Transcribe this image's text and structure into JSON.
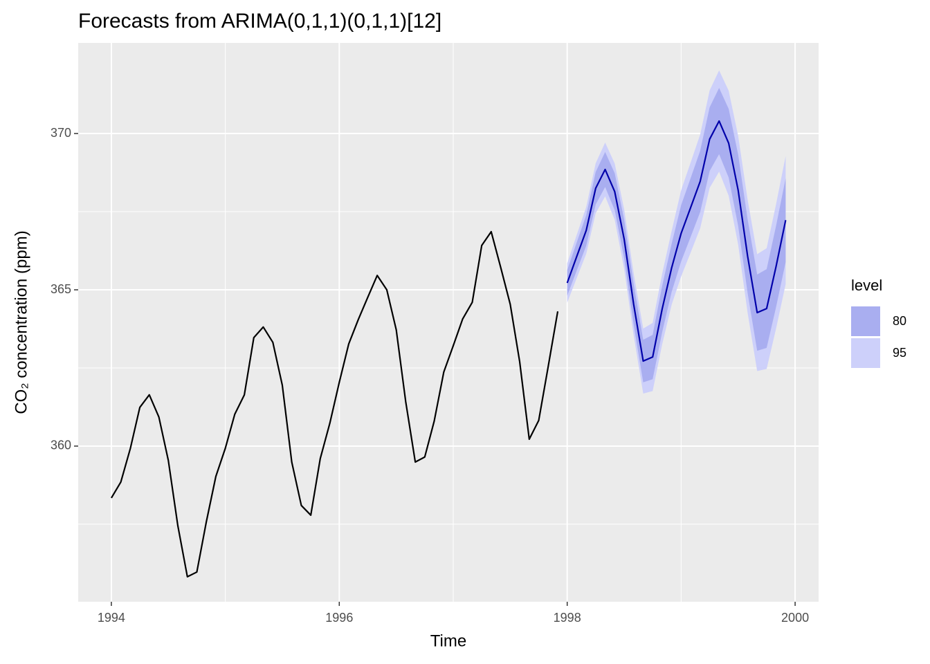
{
  "chart_data": {
    "type": "line",
    "title": "Forecasts from ARIMA(0,1,1)(0,1,1)[12]",
    "xlabel": "Time",
    "ylabel": "CO₂ concentration (ppm)",
    "xlim": [
      1993.709,
      2000.206
    ],
    "ylim": [
      355.02,
      372.9
    ],
    "xticks": [
      1994,
      1996,
      1998,
      2000
    ],
    "yticks": [
      360,
      365,
      370
    ],
    "xminor": [
      1995,
      1997,
      1999
    ],
    "yminor": [
      357.5,
      362.5,
      367.5
    ],
    "grid": true,
    "series": [
      {
        "color": "#000000",
        "x": [
          1994,
          1994.083,
          1994.167,
          1994.25,
          1994.333,
          1994.417,
          1994.5,
          1994.583,
          1994.667,
          1994.75,
          1994.833,
          1994.917,
          1995,
          1995.083,
          1995.167,
          1995.25,
          1995.333,
          1995.417,
          1995.5,
          1995.583,
          1995.667,
          1995.75,
          1995.833,
          1995.917,
          1996,
          1996.083,
          1996.167,
          1996.25,
          1996.333,
          1996.417,
          1996.5,
          1996.583,
          1996.667,
          1996.75,
          1996.833,
          1996.917,
          1997,
          1997.083,
          1997.167,
          1997.25,
          1997.333,
          1997.417,
          1997.5,
          1997.583,
          1997.667,
          1997.75,
          1997.833,
          1997.917
        ],
        "values": [
          358.34,
          358.85,
          359.93,
          361.24,
          361.64,
          360.93,
          359.54,
          357.46,
          355.82,
          355.97,
          357.57,
          359.03,
          359.93,
          361.02,
          361.64,
          363.47,
          363.81,
          363.32,
          361.95,
          359.49,
          358.1,
          357.79,
          359.6,
          360.73,
          362.04,
          363.27,
          364.05,
          364.76,
          365.46,
          365.0,
          363.72,
          361.42,
          359.49,
          359.65,
          360.8,
          362.37,
          363.21,
          364.07,
          364.6,
          366.42,
          366.86,
          365.71,
          364.54,
          362.7,
          360.22,
          360.82,
          362.54,
          364.31
        ]
      },
      {
        "color": "#0000aa",
        "x": [
          1998,
          1998.083,
          1998.167,
          1998.25,
          1998.333,
          1998.417,
          1998.5,
          1998.583,
          1998.667,
          1998.75,
          1998.833,
          1998.917,
          1999,
          1999.083,
          1999.167,
          1999.25,
          1999.333,
          1999.417,
          1999.5,
          1999.583,
          1999.667,
          1999.75,
          1999.833,
          1999.917
        ],
        "values": [
          365.22,
          366.06,
          366.9,
          368.25,
          368.85,
          368.14,
          366.62,
          364.54,
          362.72,
          362.85,
          364.38,
          365.71,
          366.81,
          367.63,
          368.47,
          369.82,
          370.4,
          369.69,
          368.19,
          366.08,
          364.27,
          364.4,
          365.75,
          367.23
        ]
      }
    ],
    "legend_title": "level",
    "intervals": [
      {
        "name": "80",
        "color": "#a9aef0",
        "lower": [
          364.81,
          365.61,
          366.41,
          367.73,
          368.29,
          367.55,
          366.0,
          363.89,
          362.04,
          362.14,
          363.64,
          364.94,
          365.91,
          366.69,
          367.49,
          368.8,
          369.34,
          368.59,
          367.05,
          364.9,
          363.05,
          363.14,
          364.45,
          365.89
        ],
        "upper": [
          365.63,
          366.51,
          367.39,
          368.77,
          369.41,
          368.73,
          367.24,
          365.19,
          363.4,
          363.56,
          365.12,
          366.48,
          367.71,
          368.57,
          369.45,
          370.84,
          371.46,
          370.79,
          369.33,
          367.26,
          365.49,
          365.66,
          367.05,
          368.57
        ]
      },
      {
        "name": "95",
        "color": "#cdd0fa",
        "lower": [
          364.59,
          365.37,
          366.15,
          367.45,
          367.99,
          367.24,
          365.67,
          363.55,
          361.68,
          361.76,
          363.25,
          364.53,
          365.43,
          366.19,
          366.97,
          368.26,
          368.78,
          368.01,
          366.45,
          364.27,
          362.4,
          362.47,
          363.76,
          365.18
        ],
        "upper": [
          365.85,
          366.75,
          367.65,
          369.05,
          369.71,
          369.04,
          367.57,
          365.53,
          363.76,
          363.94,
          365.51,
          366.89,
          368.19,
          369.07,
          369.97,
          371.38,
          372.02,
          371.37,
          369.93,
          367.89,
          366.14,
          366.33,
          367.74,
          369.28
        ]
      }
    ]
  }
}
